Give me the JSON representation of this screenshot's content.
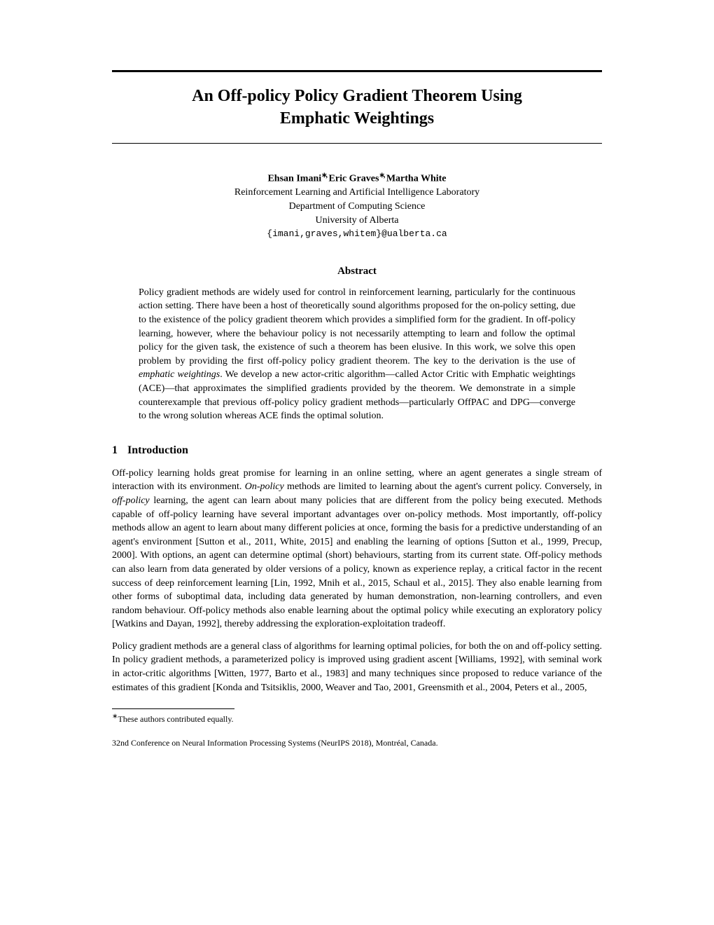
{
  "title_line1": "An Off-policy Policy Gradient Theorem Using",
  "title_line2": "Emphatic Weightings",
  "authors": {
    "a1": "Ehsan Imani",
    "a2": "Eric Graves",
    "a3": "Martha White",
    "asterisk": "∗",
    "comma": ","
  },
  "affiliation": {
    "line1": "Reinforcement Learning and Artificial Intelligence Laboratory",
    "line2": "Department of Computing Science",
    "line3": "University of Alberta",
    "email": "{imani,graves,whitem}@ualberta.ca"
  },
  "abstract": {
    "heading": "Abstract",
    "body": "Policy gradient methods are widely used for control in reinforcement learning, particularly for the continuous action setting. There have been a host of theoretically sound algorithms proposed for the on-policy setting, due to the existence of the policy gradient theorem which provides a simplified form for the gradient. In off-policy learning, however, where the behaviour policy is not necessarily attempting to learn and follow the optimal policy for the given task, the existence of such a theorem has been elusive. In this work, we solve this open problem by providing the first off-policy policy gradient theorem. The key to the derivation is the use of emphatic weightings. We develop a new actor-critic algorithm—called Actor Critic with Emphatic weightings (ACE)—that approximates the simplified gradients provided by the theorem. We demonstrate in a simple counterexample that previous off-policy policy gradient methods—particularly OffPAC and DPG—converge to the wrong solution whereas ACE finds the optimal solution."
  },
  "section1": {
    "number": "1",
    "heading": "Introduction"
  },
  "para1": "Off-policy learning holds great promise for learning in an online setting, where an agent generates a single stream of interaction with its environment. On-policy methods are limited to learning about the agent's current policy. Conversely, in off-policy learning, the agent can learn about many policies that are different from the policy being executed. Methods capable of off-policy learning have several important advantages over on-policy methods. Most importantly, off-policy methods allow an agent to learn about many different policies at once, forming the basis for a predictive understanding of an agent's environment [Sutton et al., 2011, White, 2015] and enabling the learning of options [Sutton et al., 1999, Precup, 2000]. With options, an agent can determine optimal (short) behaviours, starting from its current state. Off-policy methods can also learn from data generated by older versions of a policy, known as experience replay, a critical factor in the recent success of deep reinforcement learning [Lin, 1992, Mnih et al., 2015, Schaul et al., 2015]. They also enable learning from other forms of suboptimal data, including data generated by human demonstration, non-learning controllers, and even random behaviour. Off-policy methods also enable learning about the optimal policy while executing an exploratory policy [Watkins and Dayan, 1992], thereby addressing the exploration-exploitation tradeoff.",
  "para2": "Policy gradient methods are a general class of algorithms for learning optimal policies, for both the on and off-policy setting. In policy gradient methods, a parameterized policy is improved using gradient ascent [Williams, 1992], with seminal work in actor-critic algorithms [Witten, 1977, Barto et al., 1983] and many techniques since proposed to reduce variance of the estimates of this gradient [Konda and Tsitsiklis, 2000, Weaver and Tao, 2001, Greensmith et al., 2004, Peters et al., 2005,",
  "footnote": "These authors contributed equally.",
  "footnote_asterisk": "∗",
  "conference": "32nd Conference on Neural Information Processing Systems (NeurIPS 2018), Montréal, Canada."
}
